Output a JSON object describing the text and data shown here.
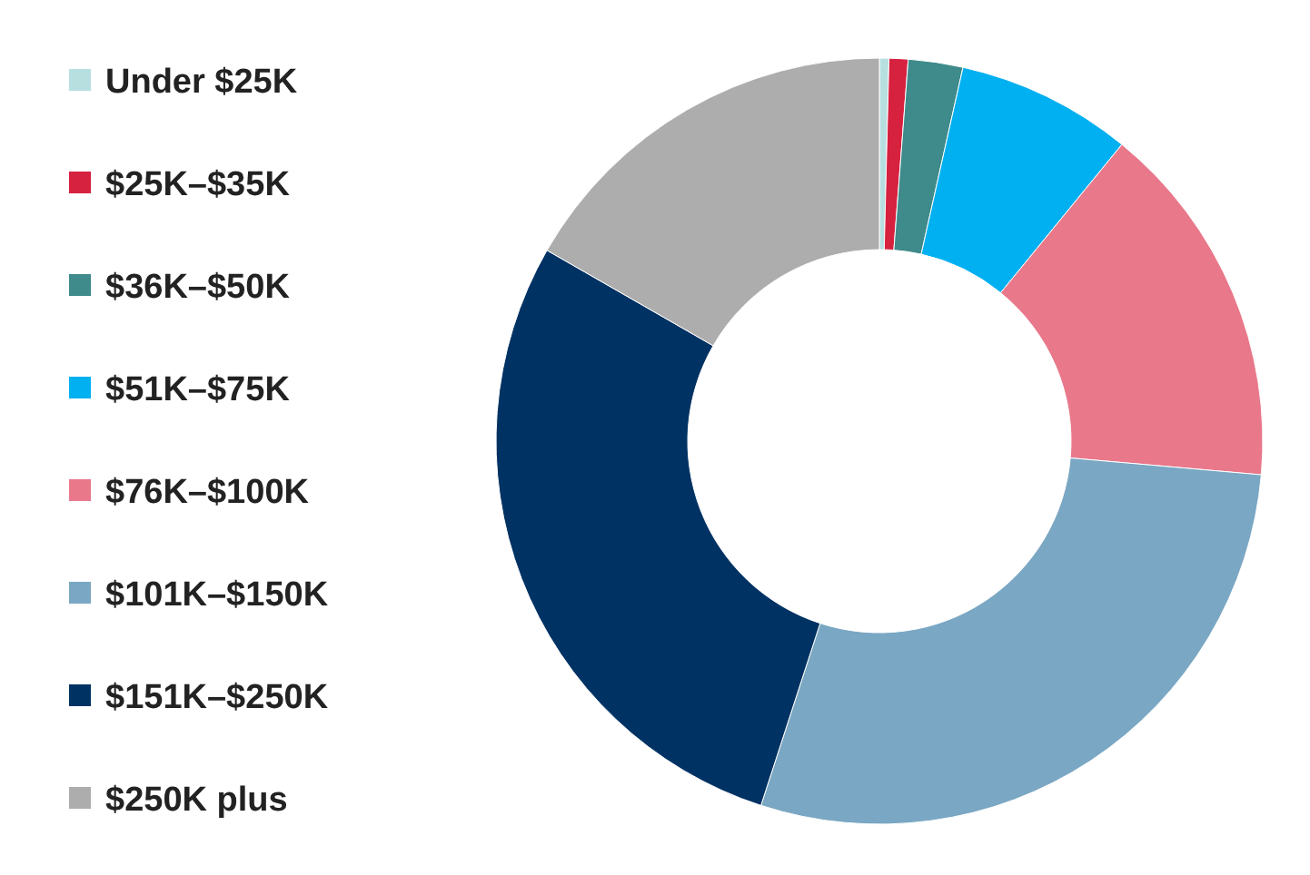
{
  "chart_data": {
    "type": "donut",
    "categories": [
      "Under $25K",
      "$25K–$35K",
      "$36K–$50K",
      "$51K–$75K",
      "$76K–$100K",
      "$101K–$150K",
      "$151K–$250K",
      "$250K plus"
    ],
    "values": [
      0.4,
      0.8,
      2.3,
      7.4,
      15.5,
      28.6,
      28.3,
      16.7
    ],
    "colors": [
      "#b7dfe0",
      "#d6213f",
      "#3f8a8a",
      "#00b0f0",
      "#e8788a",
      "#7aa7c3",
      "#003263",
      "#adadad"
    ],
    "legend": "left"
  }
}
